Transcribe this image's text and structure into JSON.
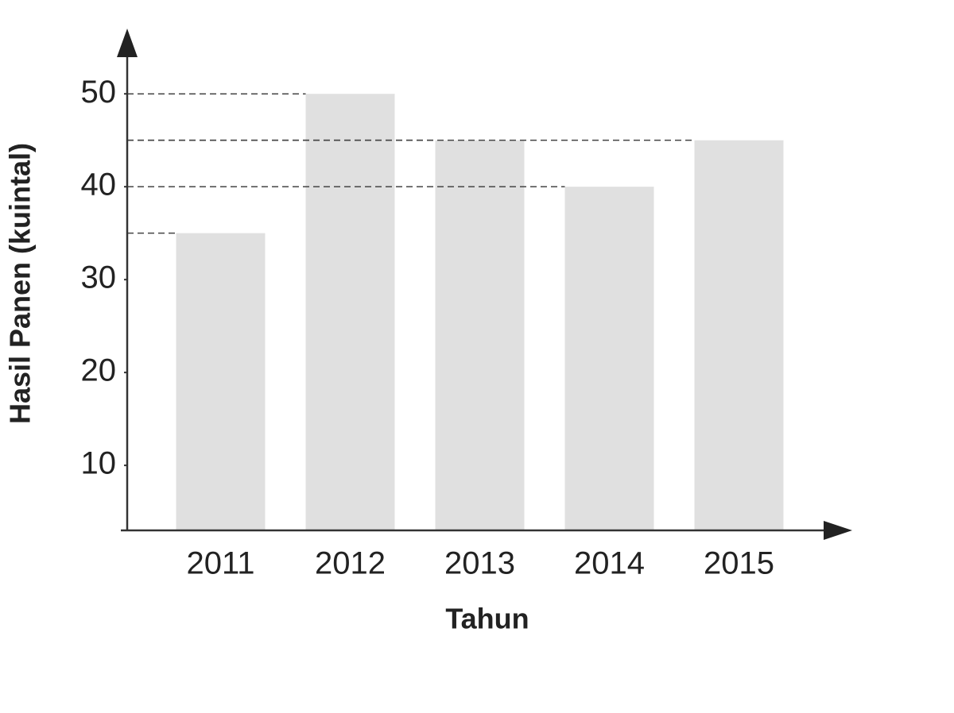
{
  "chart_data": {
    "type": "bar",
    "x_label": "Tahun",
    "y_label": "Hasil Panen (kuintal)",
    "categories": [
      "2011",
      "2012",
      "2013",
      "2014",
      "2015"
    ],
    "values": [
      35,
      50,
      45,
      40,
      45
    ],
    "color": "#e0e0e0",
    "ylim": [
      3,
      56
    ],
    "yticks": [
      10,
      20,
      30,
      40,
      50
    ],
    "guide_lines": true
  }
}
